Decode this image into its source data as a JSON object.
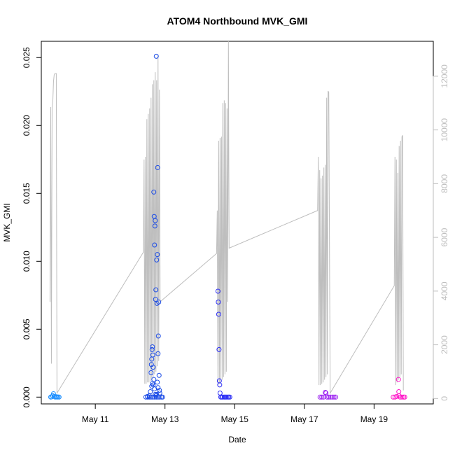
{
  "chart_data": {
    "type": "scatter",
    "title": "ATOM4 Northbound MVK_GMI",
    "xlabel": "Date",
    "ylabel": "MVK_GMI",
    "x_axis": {
      "ticks": [
        {
          "label": "May 11",
          "value": 11
        },
        {
          "label": "May 13",
          "value": 13
        },
        {
          "label": "May 15",
          "value": 15
        },
        {
          "label": "May 17",
          "value": 17
        },
        {
          "label": "May 19",
          "value": 19
        }
      ],
      "range": [
        9.45,
        20.7
      ]
    },
    "y_axis_left": {
      "ticks": [
        "0.000",
        "0.005",
        "0.010",
        "0.015",
        "0.020",
        "0.025"
      ],
      "values": [
        0,
        0.005,
        0.01,
        0.015,
        0.02,
        0.025
      ],
      "range": [
        -0.0005,
        0.0262
      ]
    },
    "y_axis_right": {
      "ticks": [
        "0",
        "2000",
        "4000",
        "6000",
        "8000",
        "10000",
        "12000"
      ],
      "values": [
        0,
        2000,
        4000,
        6000,
        8000,
        10000,
        12000
      ],
      "range": [
        -200,
        13300
      ],
      "color": "#bebebe"
    },
    "box": true,
    "grid": false,
    "legend": "none",
    "series": [
      {
        "color": "#1e90ff",
        "marker": "open-circle",
        "points": [
          [
            9.72,
            0.0
          ],
          [
            9.75,
            2e-05
          ],
          [
            9.78,
            0.0001
          ],
          [
            9.8,
            0.00025
          ],
          [
            9.82,
            5e-05
          ],
          [
            9.85,
            0.0
          ],
          [
            9.88,
            3e-05
          ],
          [
            9.9,
            0.0
          ],
          [
            9.93,
            1e-05
          ],
          [
            9.96,
            0.0
          ]
        ]
      },
      {
        "color": "#1c4ce6",
        "marker": "open-circle",
        "points": [
          [
            12.45,
            0.0
          ],
          [
            12.5,
            5e-05
          ],
          [
            12.55,
            0.0001
          ],
          [
            12.58,
            0.0004
          ],
          [
            12.6,
            0.0018
          ],
          [
            12.61,
            0.0024
          ],
          [
            12.62,
            0.0028
          ],
          [
            12.63,
            0.0035
          ],
          [
            12.64,
            0.0037
          ],
          [
            12.65,
            0.0031
          ],
          [
            12.66,
            0.0022
          ],
          [
            12.68,
            0.0151
          ],
          [
            12.69,
            0.0133
          ],
          [
            12.7,
            0.0112
          ],
          [
            12.71,
            0.0126
          ],
          [
            12.72,
            0.013
          ],
          [
            12.73,
            0.0072
          ],
          [
            12.74,
            0.0079
          ],
          [
            12.75,
            0.0251
          ],
          [
            12.76,
            0.0101
          ],
          [
            12.77,
            0.0069
          ],
          [
            12.78,
            0.0105
          ],
          [
            12.79,
            0.0169
          ],
          [
            12.8,
            0.0032
          ],
          [
            12.81,
            0.0045
          ],
          [
            12.82,
            0.007
          ],
          [
            12.83,
            0.0016
          ],
          [
            12.84,
            0.0005
          ],
          [
            12.85,
            0.0003
          ],
          [
            12.62,
            0.0008
          ],
          [
            12.64,
            0.001
          ],
          [
            12.66,
            0.0009
          ],
          [
            12.68,
            0.0013
          ],
          [
            12.7,
            0.0006
          ],
          [
            12.72,
            0.0002
          ],
          [
            12.74,
            0.0001
          ],
          [
            12.76,
            0.0002
          ],
          [
            12.78,
            0.0011
          ],
          [
            12.8,
            0.0007
          ],
          [
            12.5,
            0.0
          ],
          [
            12.55,
            0.0
          ],
          [
            12.6,
            0.0
          ],
          [
            12.65,
            0.0
          ],
          [
            12.7,
            0.0
          ],
          [
            12.75,
            0.0
          ],
          [
            12.8,
            0.0
          ],
          [
            12.85,
            0.0
          ],
          [
            12.9,
            0.0
          ],
          [
            12.93,
            0.0
          ]
        ]
      },
      {
        "color": "#2c2ef5",
        "marker": "open-circle",
        "points": [
          [
            14.52,
            0.0078
          ],
          [
            14.53,
            0.007
          ],
          [
            14.54,
            0.0061
          ],
          [
            14.55,
            0.0035
          ],
          [
            14.56,
            0.0012
          ],
          [
            14.57,
            0.0009
          ],
          [
            14.58,
            0.0003
          ],
          [
            14.6,
            0.0
          ],
          [
            14.63,
            0.0
          ],
          [
            14.66,
            0.0
          ],
          [
            14.7,
            0.0
          ],
          [
            14.73,
            0.0
          ],
          [
            14.76,
            0.0
          ],
          [
            14.8,
            0.0
          ],
          [
            14.83,
            0.0
          ],
          [
            14.86,
            0.0
          ]
        ]
      },
      {
        "color": "#9a1ef0",
        "marker": "open-circle",
        "points": [
          [
            17.45,
            0.0
          ],
          [
            17.5,
            0.0
          ],
          [
            17.55,
            0.0
          ],
          [
            17.6,
            0.00035
          ],
          [
            17.62,
            0.0003
          ],
          [
            17.65,
            0.0
          ],
          [
            17.7,
            0.0
          ],
          [
            17.75,
            0.0
          ],
          [
            17.8,
            0.0
          ],
          [
            17.85,
            0.0
          ],
          [
            17.9,
            0.0
          ]
        ]
      },
      {
        "color": "#ff14c8",
        "marker": "open-circle",
        "points": [
          [
            19.55,
            0.0
          ],
          [
            19.6,
            0.0
          ],
          [
            19.65,
            5e-05
          ],
          [
            19.7,
            0.0013
          ],
          [
            19.71,
            0.0004
          ],
          [
            19.72,
            0.0001
          ],
          [
            19.75,
            0.0
          ],
          [
            19.8,
            0.0
          ],
          [
            19.85,
            0.0
          ],
          [
            19.88,
            0.0
          ]
        ]
      }
    ],
    "right_axis_line": {
      "color": "#bebebe",
      "segments": [
        [
          [
            9.7,
            3600
          ],
          [
            9.72,
            10850
          ],
          [
            9.74,
            1300
          ],
          [
            9.76,
            10850
          ],
          [
            9.78,
            11050
          ],
          [
            9.8,
            11800
          ],
          [
            9.82,
            12050
          ],
          [
            9.84,
            12100
          ],
          [
            9.88,
            12100
          ],
          [
            9.9,
            200
          ],
          [
            12.38,
            5450
          ],
          [
            12.4,
            8900
          ],
          [
            12.42,
            550
          ],
          [
            12.44,
            9000
          ],
          [
            12.46,
            550
          ],
          [
            12.48,
            10400
          ],
          [
            12.5,
            600
          ],
          [
            12.52,
            10600
          ],
          [
            12.54,
            600
          ],
          [
            12.56,
            10800
          ],
          [
            12.58,
            650
          ],
          [
            12.6,
            11200
          ],
          [
            12.62,
            700
          ],
          [
            12.64,
            11700
          ],
          [
            12.66,
            800
          ],
          [
            12.68,
            11850
          ],
          [
            12.7,
            900
          ],
          [
            12.72,
            12150
          ],
          [
            12.74,
            1000
          ],
          [
            12.76,
            11850
          ],
          [
            12.78,
            1200
          ],
          [
            12.8,
            12800
          ],
          [
            12.82,
            1400
          ],
          [
            12.84,
            11500
          ],
          [
            12.86,
            3600
          ],
          [
            14.48,
            5400
          ],
          [
            14.5,
            7000
          ],
          [
            14.52,
            500
          ],
          [
            14.54,
            9600
          ],
          [
            14.56,
            550
          ],
          [
            14.58,
            9700
          ],
          [
            14.6,
            600
          ],
          [
            14.62,
            9750
          ],
          [
            14.64,
            700
          ],
          [
            14.66,
            11000
          ],
          [
            14.68,
            800
          ],
          [
            14.7,
            11100
          ],
          [
            14.72,
            900
          ],
          [
            14.74,
            11000
          ],
          [
            14.76,
            1000
          ],
          [
            14.78,
            10800
          ],
          [
            14.8,
            3600
          ],
          [
            14.82,
            13300
          ],
          [
            14.84,
            5600
          ],
          [
            17.38,
            7000
          ],
          [
            17.4,
            9000
          ],
          [
            17.42,
            500
          ],
          [
            17.44,
            8500
          ],
          [
            17.46,
            500
          ],
          [
            17.48,
            8200
          ],
          [
            17.5,
            550
          ],
          [
            17.52,
            8300
          ],
          [
            17.54,
            600
          ],
          [
            17.56,
            8600
          ],
          [
            17.58,
            700
          ],
          [
            17.6,
            8700
          ],
          [
            17.62,
            800
          ],
          [
            17.64,
            11200
          ],
          [
            17.66,
            900
          ],
          [
            17.68,
            11450
          ],
          [
            17.7,
            11400
          ],
          [
            17.74,
            200
          ],
          [
            19.58,
            4200
          ],
          [
            19.6,
            9000
          ],
          [
            19.62,
            500
          ],
          [
            19.64,
            8900
          ],
          [
            19.66,
            600
          ],
          [
            19.68,
            8400
          ],
          [
            19.7,
            700
          ],
          [
            19.72,
            9400
          ],
          [
            19.74,
            800
          ],
          [
            19.76,
            9600
          ],
          [
            19.78,
            900
          ],
          [
            19.8,
            9750
          ],
          [
            19.82,
            9800
          ],
          [
            19.84,
            300
          ]
        ]
      ]
    }
  }
}
